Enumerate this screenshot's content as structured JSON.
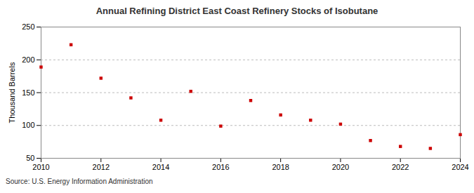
{
  "chart_data": {
    "type": "scatter",
    "title": "Annual Refining District East Coast Refinery Stocks of Isobutane",
    "y_label": "Thousand Barrels",
    "caption": "Source: U.S. Energy Information Administration",
    "x": [
      2010,
      2011,
      2012,
      2013,
      2014,
      2015,
      2016,
      2017,
      2018,
      2019,
      2020,
      2021,
      2022,
      2023,
      2024
    ],
    "values": [
      189,
      223,
      172,
      142,
      108,
      152,
      99,
      138,
      116,
      108,
      102,
      77,
      68,
      65,
      86
    ],
    "color": "#cc0000",
    "marker": "square",
    "xlim": [
      2010,
      2024
    ],
    "xticks": [
      2010,
      2012,
      2014,
      2016,
      2018,
      2020,
      2022,
      2024
    ],
    "ylim": [
      50,
      250
    ],
    "yticks": [
      50,
      100,
      150,
      200,
      250
    ],
    "grid": true
  }
}
